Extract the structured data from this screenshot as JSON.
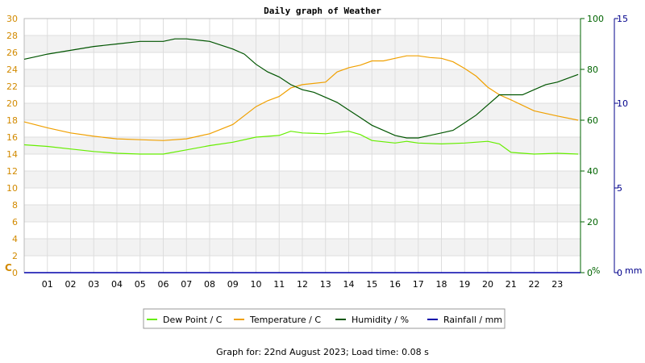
{
  "chart_data": {
    "type": "line",
    "title": "Daily graph of Weather",
    "x_ticks": [
      "01",
      "02",
      "03",
      "04",
      "05",
      "06",
      "07",
      "08",
      "09",
      "10",
      "11",
      "12",
      "13",
      "14",
      "15",
      "16",
      "17",
      "18",
      "19",
      "20",
      "21",
      "22",
      "23"
    ],
    "x_range": [
      0,
      24
    ],
    "axes": {
      "temp": {
        "unit_label": "C",
        "range": [
          0,
          30
        ],
        "ticks": [
          0,
          2,
          4,
          6,
          8,
          10,
          12,
          14,
          16,
          18,
          20,
          22,
          24,
          26,
          28,
          30
        ],
        "color": "#d28a00"
      },
      "humidity": {
        "unit_label": "%",
        "range": [
          0,
          100
        ],
        "ticks": [
          0,
          20,
          40,
          60,
          80,
          100
        ],
        "color": "#006400"
      },
      "rain": {
        "unit_label": "mm",
        "range": [
          0,
          15
        ],
        "ticks": [
          0,
          5,
          10,
          15
        ],
        "color": "#00008b"
      }
    },
    "grid": true,
    "legend_position": "bottom",
    "series": [
      {
        "name": "Dew Point / C",
        "axis": "temp",
        "color": "#66ee00",
        "x": [
          0,
          1,
          2,
          3,
          4,
          5,
          6,
          7,
          8,
          9,
          10,
          11,
          11.5,
          12,
          13,
          14,
          14.5,
          15,
          16,
          16.5,
          17,
          18,
          19,
          20,
          20.5,
          21,
          22,
          23,
          23.9
        ],
        "y": [
          15.1,
          14.9,
          14.6,
          14.3,
          14.1,
          14.0,
          14.0,
          14.5,
          15.0,
          15.4,
          16.0,
          16.2,
          16.7,
          16.5,
          16.4,
          16.7,
          16.3,
          15.6,
          15.3,
          15.5,
          15.3,
          15.2,
          15.3,
          15.5,
          15.2,
          14.2,
          14.0,
          14.1,
          14.0
        ]
      },
      {
        "name": "Temperature / C",
        "axis": "temp",
        "color": "#f0a000",
        "x": [
          0,
          1,
          2,
          3,
          4,
          5,
          6,
          7,
          8,
          9,
          10,
          10.5,
          11,
          11.5,
          12,
          13,
          13.5,
          14,
          14.5,
          15,
          15.5,
          16,
          16.5,
          17,
          17.5,
          18,
          18.5,
          19,
          19.5,
          20,
          20.5,
          21,
          22,
          23,
          23.9
        ],
        "y": [
          17.8,
          17.1,
          16.5,
          16.1,
          15.8,
          15.7,
          15.6,
          15.8,
          16.4,
          17.5,
          19.6,
          20.3,
          20.8,
          21.8,
          22.2,
          22.5,
          23.7,
          24.2,
          24.5,
          25.0,
          25.0,
          25.3,
          25.6,
          25.6,
          25.4,
          25.3,
          24.9,
          24.1,
          23.2,
          21.9,
          21.0,
          20.4,
          19.1,
          18.5,
          18.0
        ]
      },
      {
        "name": "Humidity / %",
        "axis": "humidity",
        "color": "#005500",
        "x": [
          0,
          0.5,
          1,
          2,
          3,
          4,
          5,
          6,
          6.5,
          7,
          8,
          9,
          9.5,
          10,
          10.5,
          11,
          11.5,
          12,
          12.5,
          13,
          13.5,
          14,
          14.5,
          15,
          15.5,
          16,
          16.5,
          17,
          17.5,
          18,
          18.5,
          19,
          19.5,
          20,
          20.5,
          21,
          21.5,
          22,
          22.5,
          23,
          23.9
        ],
        "y": [
          84,
          85,
          86,
          87.5,
          89,
          90,
          91,
          91,
          92,
          92,
          91,
          88,
          86,
          82,
          79,
          77,
          74,
          72,
          71,
          69,
          67,
          64,
          61,
          58,
          56,
          54,
          53,
          53,
          54,
          55,
          56,
          59,
          62,
          66,
          70,
          70,
          70,
          72,
          74,
          75,
          78
        ]
      },
      {
        "name": "Rainfall / mm",
        "axis": "rain",
        "color": "#0000aa",
        "x": [
          0,
          24
        ],
        "y": [
          0,
          0
        ]
      }
    ]
  },
  "footer_text": "Graph for: 22nd August 2023; Load time: 0.08 s"
}
